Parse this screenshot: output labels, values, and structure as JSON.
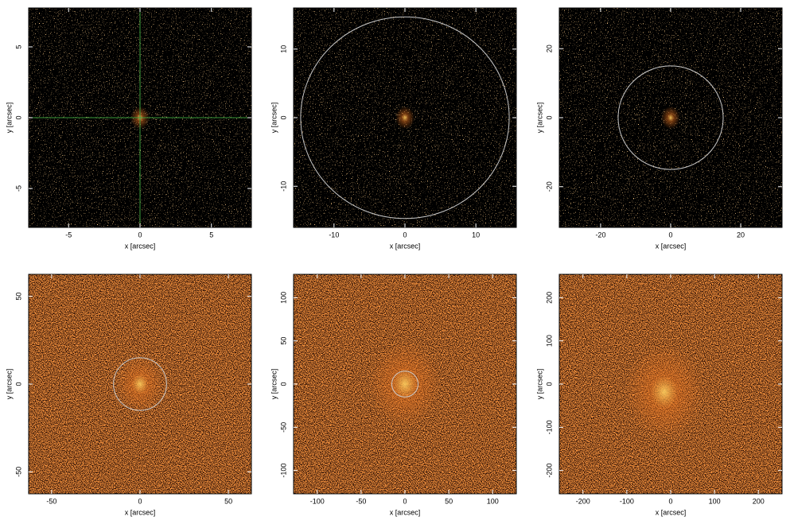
{
  "chart_data": [
    {
      "type": "image",
      "xlabel": "x [arcsec]",
      "ylabel": "y [arcsec]",
      "xlim": [
        -7.8,
        7.8
      ],
      "ylim": [
        -7.75,
        7.75
      ],
      "xticks": [
        -5,
        0,
        5
      ],
      "yticks": [
        -5,
        0,
        5
      ],
      "crosshair": {
        "x": 0,
        "y": 0
      }
    },
    {
      "type": "image",
      "xlabel": "x [arcsec]",
      "ylabel": "y [arcsec]",
      "xlim": [
        -15.7,
        15.7
      ],
      "ylim": [
        -16,
        16
      ],
      "xticks": [
        -10,
        0,
        10
      ],
      "yticks": [
        -10,
        0,
        10
      ],
      "circle": {
        "x": 0,
        "y": 0,
        "r": 14.7
      }
    },
    {
      "type": "image",
      "xlabel": "x [arcsec]",
      "ylabel": "y [arcsec]",
      "xlim": [
        -31.8,
        31.8
      ],
      "ylim": [
        -31.8,
        31.8
      ],
      "xticks": [
        -20,
        0,
        20
      ],
      "yticks": [
        -20,
        0,
        20
      ],
      "circle": {
        "x": 0,
        "y": 0,
        "r": 15
      }
    },
    {
      "type": "image",
      "xlabel": "x [arcsec]",
      "ylabel": "y [arcsec]",
      "xlim": [
        -63,
        63
      ],
      "ylim": [
        -62.5,
        62.5
      ],
      "xticks": [
        -50,
        0,
        50
      ],
      "yticks": [
        -50,
        0,
        50
      ],
      "circle": {
        "x": 0,
        "y": 0,
        "r": 15
      }
    },
    {
      "type": "image",
      "xlabel": "x [arcsec]",
      "ylabel": "y [arcsec]",
      "xlim": [
        -127,
        127
      ],
      "ylim": [
        -127,
        127
      ],
      "xticks": [
        -100,
        -50,
        0,
        50,
        100
      ],
      "yticks": [
        -100,
        -50,
        0,
        50,
        100
      ],
      "circle": {
        "x": 0,
        "y": 0,
        "r": 15
      }
    },
    {
      "type": "image",
      "xlabel": "x [arcsec]",
      "ylabel": "y [arcsec]",
      "xlim": [
        -254,
        254
      ],
      "ylim": [
        -254,
        254
      ],
      "xticks": [
        -200,
        -100,
        0,
        100,
        200
      ],
      "yticks": [
        -200,
        -100,
        0,
        100,
        200
      ]
    }
  ]
}
